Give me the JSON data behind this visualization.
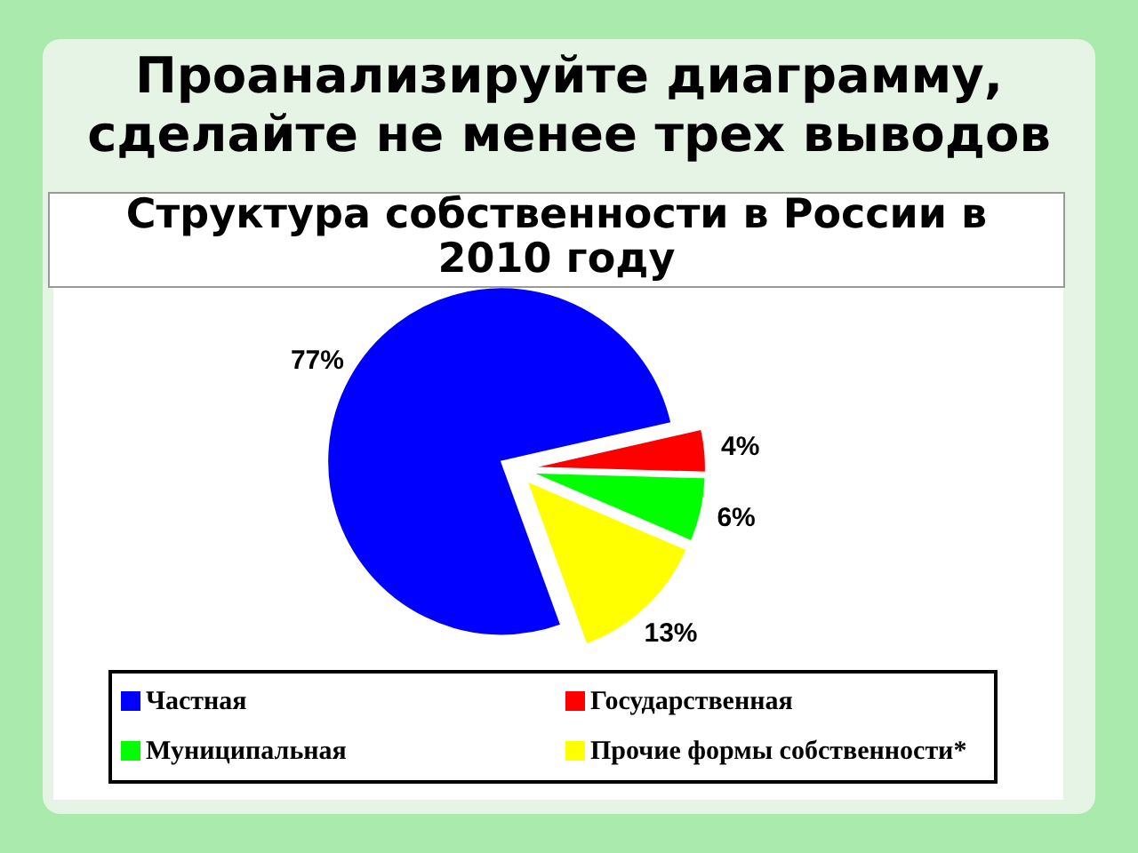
{
  "chart_data": {
    "type": "pie",
    "title": "Проанализируйте диаграмму, сделайте не менее трех выводов",
    "subtitle": "Структура собственности в России в 2010 году",
    "categories": [
      "Частная",
      "Государственная",
      "Муниципальная",
      "Прочие формы собственности*"
    ],
    "values": [
      77,
      4,
      6,
      13
    ],
    "colors": [
      "#0000ff",
      "#ff0000",
      "#00ff00",
      "#ffff00"
    ],
    "value_labels": [
      "77%",
      "4%",
      "6%",
      "13%"
    ],
    "legend": "bottom"
  }
}
